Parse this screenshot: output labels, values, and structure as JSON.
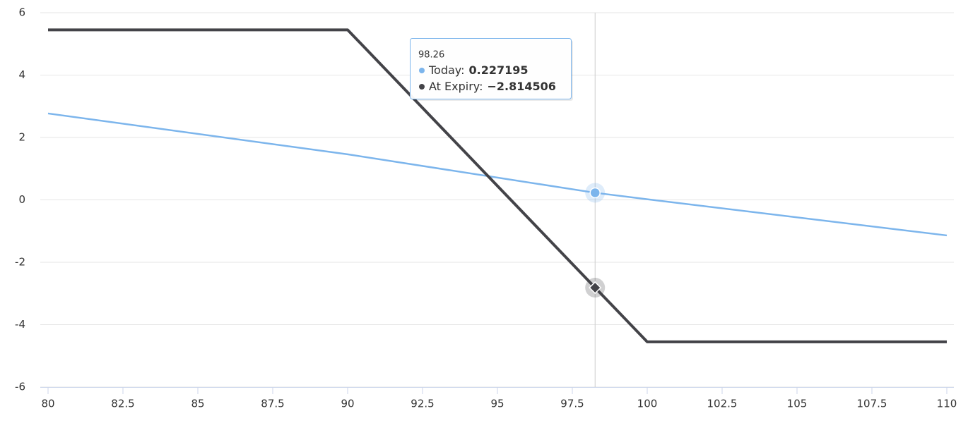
{
  "chart_data": {
    "type": "line",
    "x": [
      80,
      90,
      98.26,
      100,
      110
    ],
    "series": [
      {
        "name": "Today",
        "color": "#7cb5ec",
        "values": [
          2.77,
          1.46,
          0.227195,
          0.02,
          -1.14
        ]
      },
      {
        "name": "At Expiry",
        "color": "#434348",
        "values": [
          5.45,
          5.45,
          -2.814506,
          -4.55,
          -4.55
        ],
        "value_labels": [
          null,
          null,
          "−2.814506",
          null,
          null
        ]
      }
    ],
    "xlim": [
      80,
      110
    ],
    "xticks": [
      80,
      82.5,
      85,
      87.5,
      90,
      92.5,
      95,
      97.5,
      100,
      102.5,
      105,
      107.5,
      110
    ],
    "ylim": [
      -6,
      6
    ],
    "yticks": [
      -6,
      -4,
      -2,
      0,
      2,
      4,
      6
    ],
    "grid": true,
    "tooltip": {
      "point": 2,
      "rows": [
        "Today:",
        "At Expiry:"
      ]
    }
  }
}
